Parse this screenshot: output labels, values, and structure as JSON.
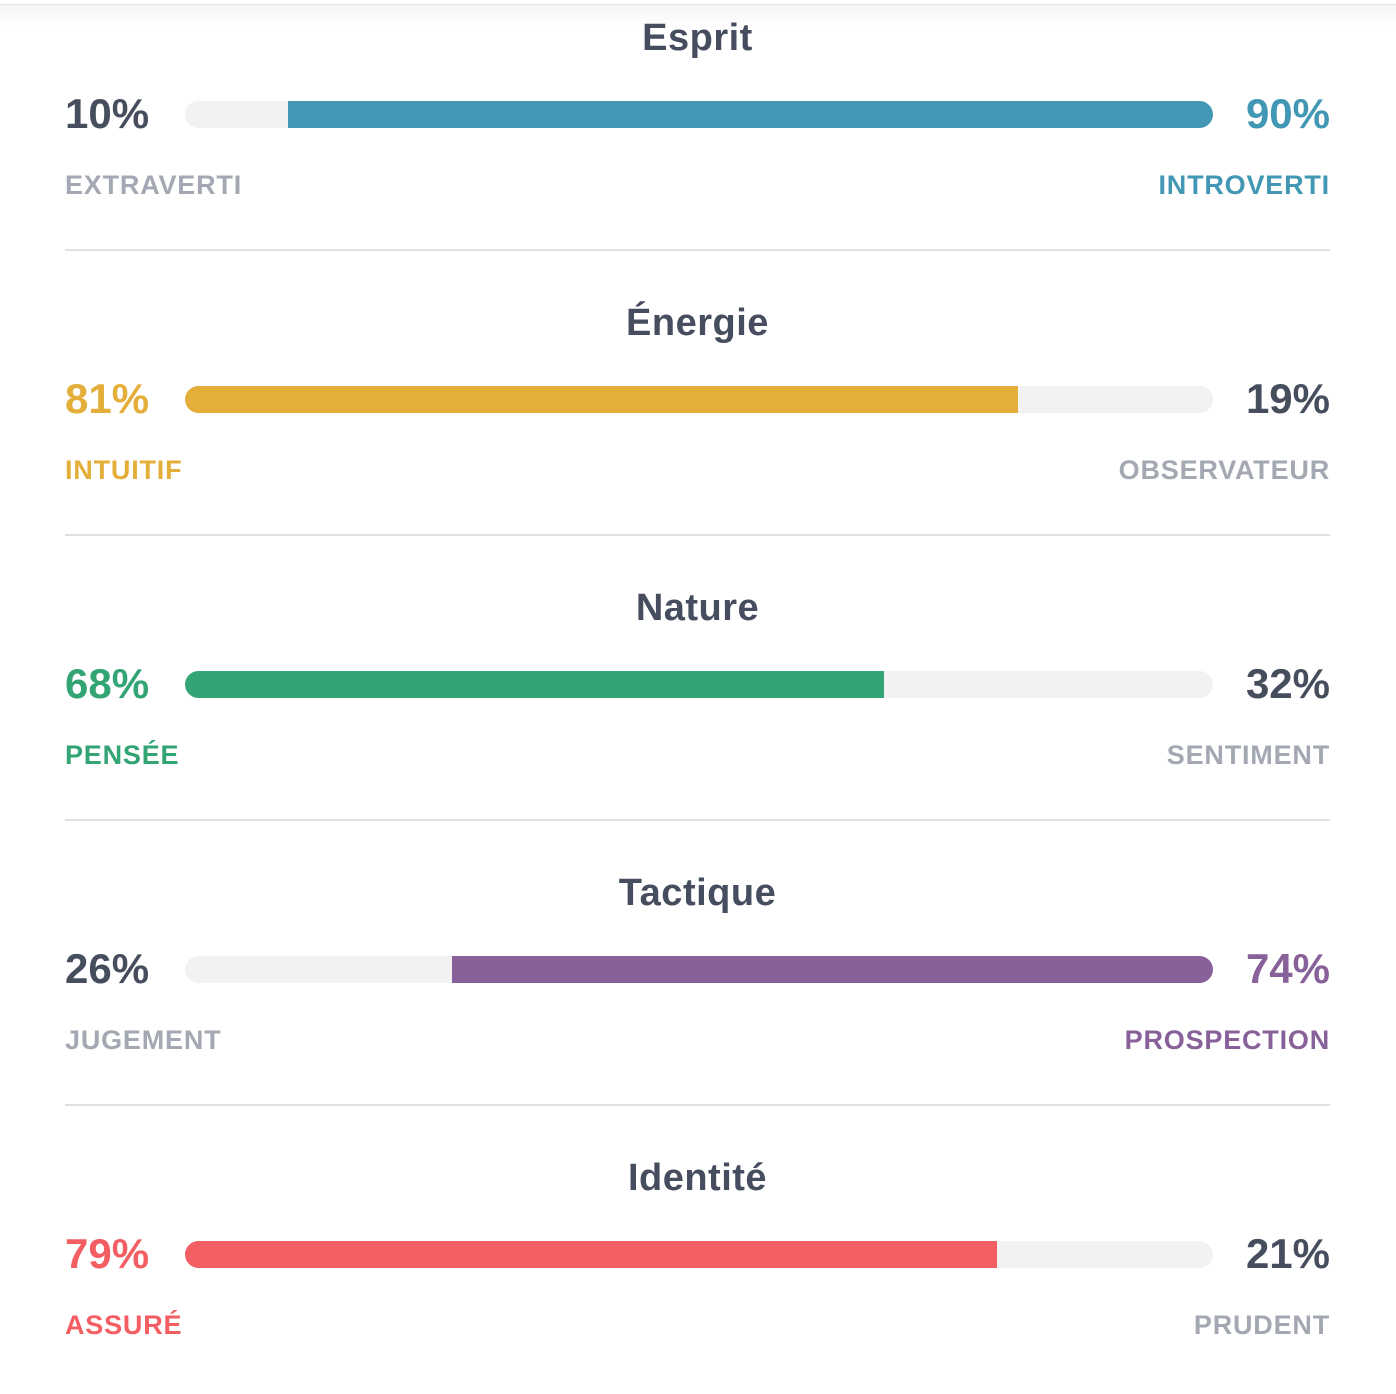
{
  "sections": [
    {
      "title": "Esprit",
      "left_value": "10%",
      "right_value": "90%",
      "left_label": "EXTRAVERTI",
      "right_label": "INTROVERTI",
      "dominant_side": "right",
      "dominant_percent": 90,
      "color": "#4298b4"
    },
    {
      "title": "Énergie",
      "left_value": "81%",
      "right_value": "19%",
      "left_label": "INTUITIF",
      "right_label": "OBSERVATEUR",
      "dominant_side": "left",
      "dominant_percent": 81,
      "color": "#e4ae3a"
    },
    {
      "title": "Nature",
      "left_value": "68%",
      "right_value": "32%",
      "left_label": "PENSÉE",
      "right_label": "SENTIMENT",
      "dominant_side": "left",
      "dominant_percent": 68,
      "color": "#33a474"
    },
    {
      "title": "Tactique",
      "left_value": "26%",
      "right_value": "74%",
      "left_label": "JUGEMENT",
      "right_label": "PROSPECTION",
      "dominant_side": "right",
      "dominant_percent": 74,
      "color": "#88619a"
    },
    {
      "title": "Identité",
      "left_value": "79%",
      "right_value": "21%",
      "left_label": "ASSURÉ",
      "right_label": "PRUDENT",
      "dominant_side": "left",
      "dominant_percent": 79,
      "color": "#f25e62"
    }
  ],
  "neutral_colors": {
    "dark_text": "#464e5e",
    "gray_label": "#a3a8b2",
    "track": "#f2f2f2",
    "divider": "#e0e0e1"
  },
  "chart_data": {
    "type": "bar",
    "subtype": "paired-trait-gauges",
    "categories": [
      "Esprit",
      "Énergie",
      "Nature",
      "Tactique",
      "Identité"
    ],
    "series": [
      {
        "name": "left-trait",
        "labels": [
          "EXTRAVERTI",
          "INTUITIF",
          "PENSÉE",
          "JUGEMENT",
          "ASSURÉ"
        ],
        "values": [
          10,
          81,
          68,
          26,
          79
        ]
      },
      {
        "name": "right-trait",
        "labels": [
          "INTROVERTI",
          "OBSERVATEUR",
          "SENTIMENT",
          "PROSPECTION",
          "PRUDENT"
        ],
        "values": [
          90,
          19,
          32,
          74,
          21
        ]
      }
    ],
    "dominant_sides": [
      "right",
      "left",
      "left",
      "right",
      "left"
    ],
    "bar_colors": [
      "#4298b4",
      "#e4ae3a",
      "#33a474",
      "#88619a",
      "#f25e62"
    ],
    "value_range": [
      0,
      100
    ],
    "grid": false,
    "legend": false,
    "orientation": "horizontal"
  }
}
